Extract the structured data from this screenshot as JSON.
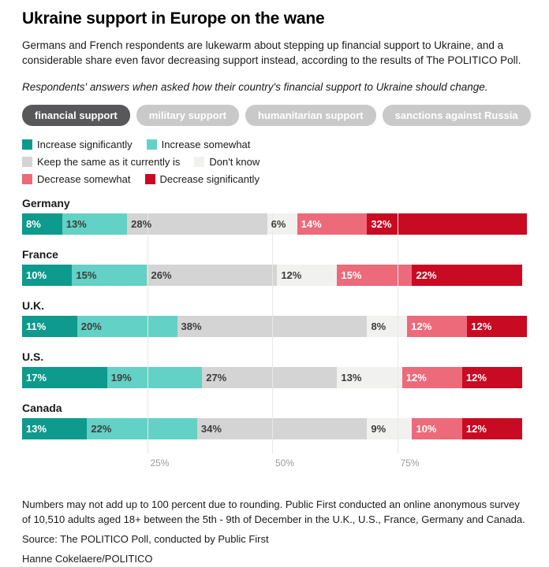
{
  "header": {
    "title": "Ukraine support in Europe on the wane",
    "subtitle": "Germans and French respondents are lukewarm about stepping up financial support to Ukraine, and a considerable share even favor decreasing support instead, according to the results of The POLITICO Poll.",
    "question": "Respondents' answers when asked how their country's financial support to Ukraine should change."
  },
  "tabs": {
    "active": "financial support",
    "items": [
      "financial support",
      "military support",
      "humanitarian support",
      "sanctions against Russia"
    ]
  },
  "legend_rows": [
    [
      0,
      1
    ],
    [
      2,
      3
    ],
    [
      4,
      5
    ]
  ],
  "chart_data": {
    "type": "bar",
    "orientation": "horizontal-stacked",
    "title": "Ukraine support in Europe on the wane",
    "categories": [
      "Germany",
      "France",
      "U.K.",
      "U.S.",
      "Canada"
    ],
    "series": [
      {
        "name": "Increase significantly",
        "color": "#0e9a8d",
        "label_color": "#ffffff",
        "values": [
          8,
          10,
          11,
          17,
          13
        ]
      },
      {
        "name": "Increase somewhat",
        "color": "#63d1c5",
        "label_color": "#3c3c3c",
        "values": [
          13,
          15,
          20,
          19,
          22
        ]
      },
      {
        "name": "Keep the same as it currently is",
        "color": "#d4d4d4",
        "label_color": "#3c3c3c",
        "values": [
          28,
          26,
          38,
          27,
          34
        ]
      },
      {
        "name": "Don't know",
        "color": "#f1f1ef",
        "label_color": "#3c3c3c",
        "values": [
          6,
          12,
          8,
          13,
          9
        ]
      },
      {
        "name": "Decrease somewhat",
        "color": "#ec6a7a",
        "label_color": "#ffffff",
        "values": [
          14,
          15,
          12,
          12,
          10
        ]
      },
      {
        "name": "Decrease significantly",
        "color": "#c90a23",
        "label_color": "#ffffff",
        "values": [
          32,
          22,
          12,
          12,
          12
        ]
      }
    ],
    "value_suffix": "%",
    "xlim": [
      0,
      100
    ],
    "x_ticks": [
      {
        "label": "25%",
        "position": 25
      },
      {
        "label": "50%",
        "position": 50
      },
      {
        "label": "75%",
        "position": 75
      }
    ],
    "grid": true,
    "legend_position": "top"
  },
  "footer": {
    "note": "Numbers may not add up to 100 percent due to rounding. Public First conducted an online anonymous survey of 10,510 adults aged 18+ between the 5th - 9th of December in the U.K., U.S., France, Germany and Canada.",
    "source": "Source: The POLITICO Poll, conducted by Public First",
    "byline": "Hanne Cokelaere/POLITICO"
  },
  "colors": {
    "tab_active_bg": "#58585a",
    "tab_inactive_bg": "#c9c9c9",
    "tab_text": "#ffffff",
    "gridline": "#cccccc",
    "axis_label": "#9a9a9a"
  }
}
